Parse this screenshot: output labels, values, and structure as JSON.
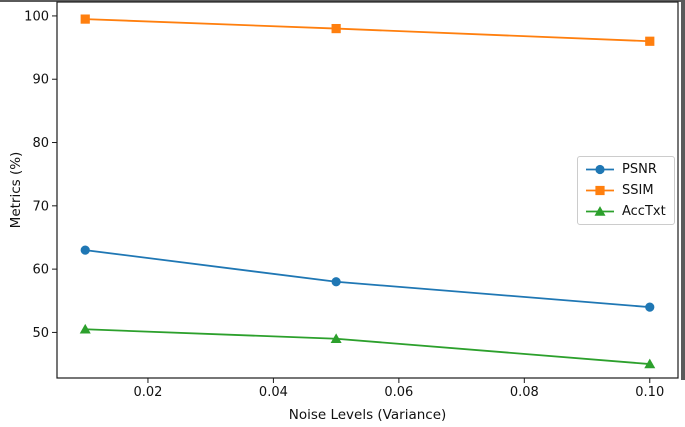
{
  "figure": {
    "background": "#ffffff",
    "frame_color": "#5a5a5a",
    "axis_color": "#1a1a1a",
    "text_color": "#111111",
    "legend_border_color": "#cccccc"
  },
  "chart_data": {
    "type": "line",
    "title": "",
    "xlabel": "Noise Levels (Variance)",
    "ylabel": "Metrics (%)",
    "x": [
      0.01,
      0.05,
      0.1
    ],
    "series": [
      {
        "name": "PSNR",
        "values": [
          63.0,
          58.0,
          54.0
        ],
        "color": "#1f77b4",
        "marker": "circle"
      },
      {
        "name": "SSIM",
        "values": [
          99.5,
          98.0,
          96.0
        ],
        "color": "#ff7f0e",
        "marker": "square"
      },
      {
        "name": "AccTxt",
        "values": [
          50.5,
          49.0,
          45.0
        ],
        "color": "#2ca02c",
        "marker": "triangle"
      }
    ],
    "xlim": [
      0.0055,
      0.1045
    ],
    "ylim": [
      42.8,
      102.2
    ],
    "xticks": {
      "values": [
        0.02,
        0.04,
        0.06,
        0.08,
        0.1
      ],
      "labels": [
        "0.02",
        "0.04",
        "0.06",
        "0.08",
        "0.10"
      ]
    },
    "yticks": {
      "values": [
        50,
        60,
        70,
        80,
        90,
        100
      ],
      "labels": [
        "50",
        "60",
        "70",
        "80",
        "90",
        "100"
      ]
    },
    "grid": false,
    "legend": {
      "position": "center right",
      "labels": [
        "PSNR",
        "SSIM",
        "AccTxt"
      ]
    }
  }
}
